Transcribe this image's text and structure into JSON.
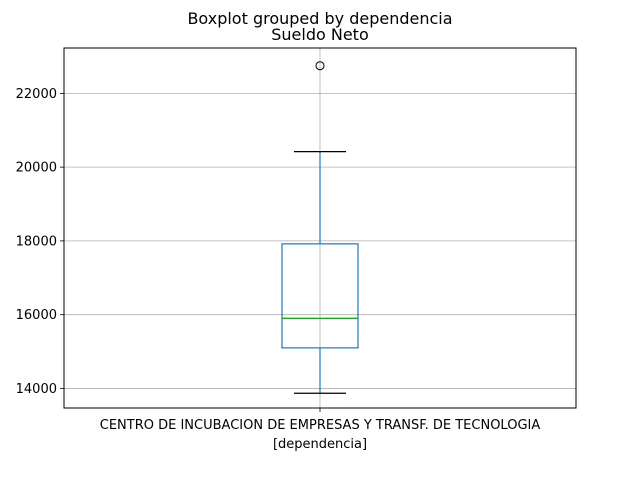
{
  "chart_data": {
    "type": "box",
    "suptitle": "Boxplot grouped by dependencia",
    "title": "Sueldo Neto",
    "xlabel": "[dependencia]",
    "categories": [
      "CENTRO DE INCUBACION DE EMPRESAS Y TRANSF. DE TECNOLOGIA"
    ],
    "boxes": [
      {
        "category": "CENTRO DE INCUBACION DE EMPRESAS Y TRANSF. DE TECNOLOGIA",
        "whisker_low": 13870,
        "q1": 15100,
        "median": 15900,
        "q3": 17920,
        "whisker_high": 20420,
        "outliers": [
          22750
        ]
      }
    ],
    "yticks": [
      14000,
      16000,
      18000,
      20000,
      22000
    ],
    "ylim": [
      13470,
      23230
    ],
    "grid": true,
    "colors": {
      "box": "#1f77b4",
      "median": "#2ca02c",
      "whisker": "#1f77b4",
      "cap": "#000000",
      "grid": "#b0b0b0"
    }
  }
}
